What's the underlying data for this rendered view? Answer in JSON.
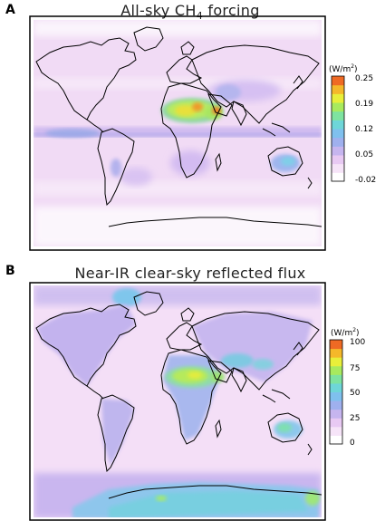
{
  "panels": [
    {
      "letter": "A",
      "title_main": "All-sky CH",
      "title_sub": "4",
      "title_tail": " forcing",
      "colorbar": {
        "unit_prefix": "(W/m",
        "unit_sup": "2",
        "unit_suffix": ")",
        "ticks": [
          "0.25",
          "0.19",
          "0.12",
          "0.05",
          "-0.02"
        ],
        "colors": [
          "#ffffff",
          "#f6e4f8",
          "#e8c9f3",
          "#c6b5ef",
          "#9fb0ee",
          "#7fc0ee",
          "#6ed6d8",
          "#7ee3a0",
          "#a8ea5e",
          "#e8ef3a",
          "#f4b82a",
          "#ef6a24"
        ]
      }
    },
    {
      "letter": "B",
      "title": "Near-IR clear-sky reflected flux",
      "colorbar": {
        "unit_prefix": "(W/m",
        "unit_sup": "2",
        "unit_suffix": ")",
        "ticks": [
          "100",
          "75",
          "50",
          "25",
          "0"
        ],
        "colors": [
          "#ffffff",
          "#f6e4f8",
          "#e8c9f3",
          "#c6b5ef",
          "#9fb0ee",
          "#7fc0ee",
          "#6ed6d8",
          "#7ee3a0",
          "#a8ea5e",
          "#e8ef3a",
          "#f4b82a",
          "#ef6a24"
        ]
      }
    }
  ]
}
